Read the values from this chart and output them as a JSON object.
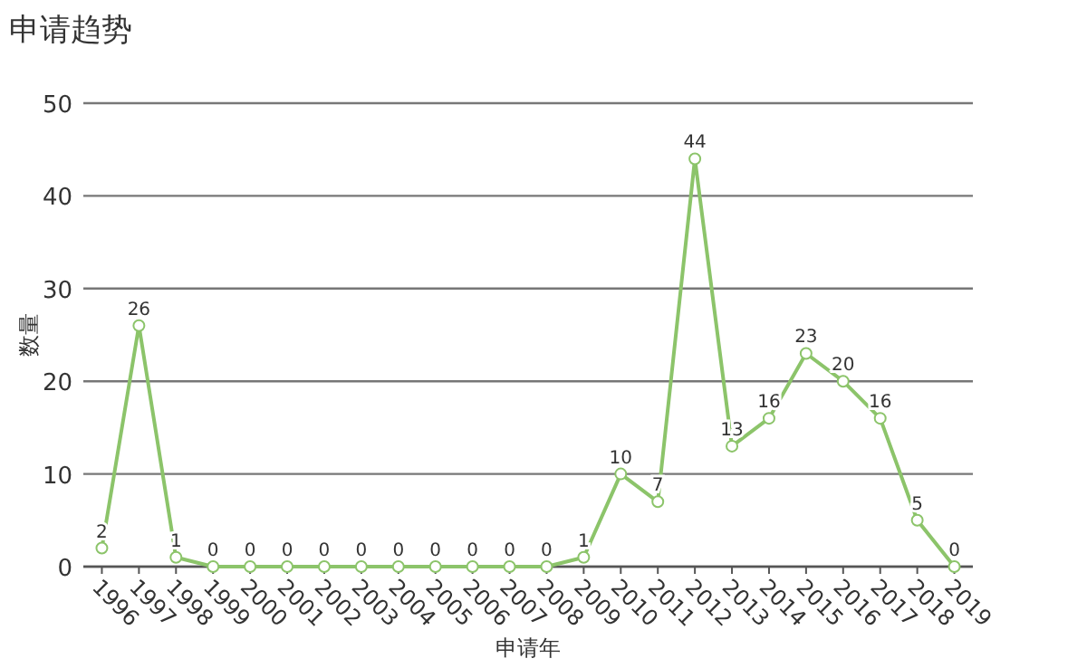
{
  "chart_data": {
    "type": "line",
    "title": "申请趋势",
    "xlabel": "申请年",
    "ylabel": "数量",
    "categories": [
      "1996",
      "1997",
      "1998",
      "1999",
      "2000",
      "2001",
      "2002",
      "2003",
      "2004",
      "2005",
      "2006",
      "2007",
      "2008",
      "2009",
      "2010",
      "2011",
      "2012",
      "2013",
      "2014",
      "2015",
      "2016",
      "2017",
      "2018",
      "2019"
    ],
    "series": [
      {
        "color": "#8cc46a",
        "values": [
          2,
          26,
          1,
          0,
          0,
          0,
          0,
          0,
          0,
          0,
          0,
          0,
          0,
          1,
          10,
          7,
          44,
          13,
          16,
          23,
          20,
          16,
          5,
          0
        ]
      }
    ],
    "ylim": [
      0,
      50
    ],
    "yticks": [
      0,
      10,
      20,
      30,
      40,
      50
    ],
    "grid": "y",
    "data_labels": true,
    "marker": "circle",
    "line_style": "solid"
  }
}
